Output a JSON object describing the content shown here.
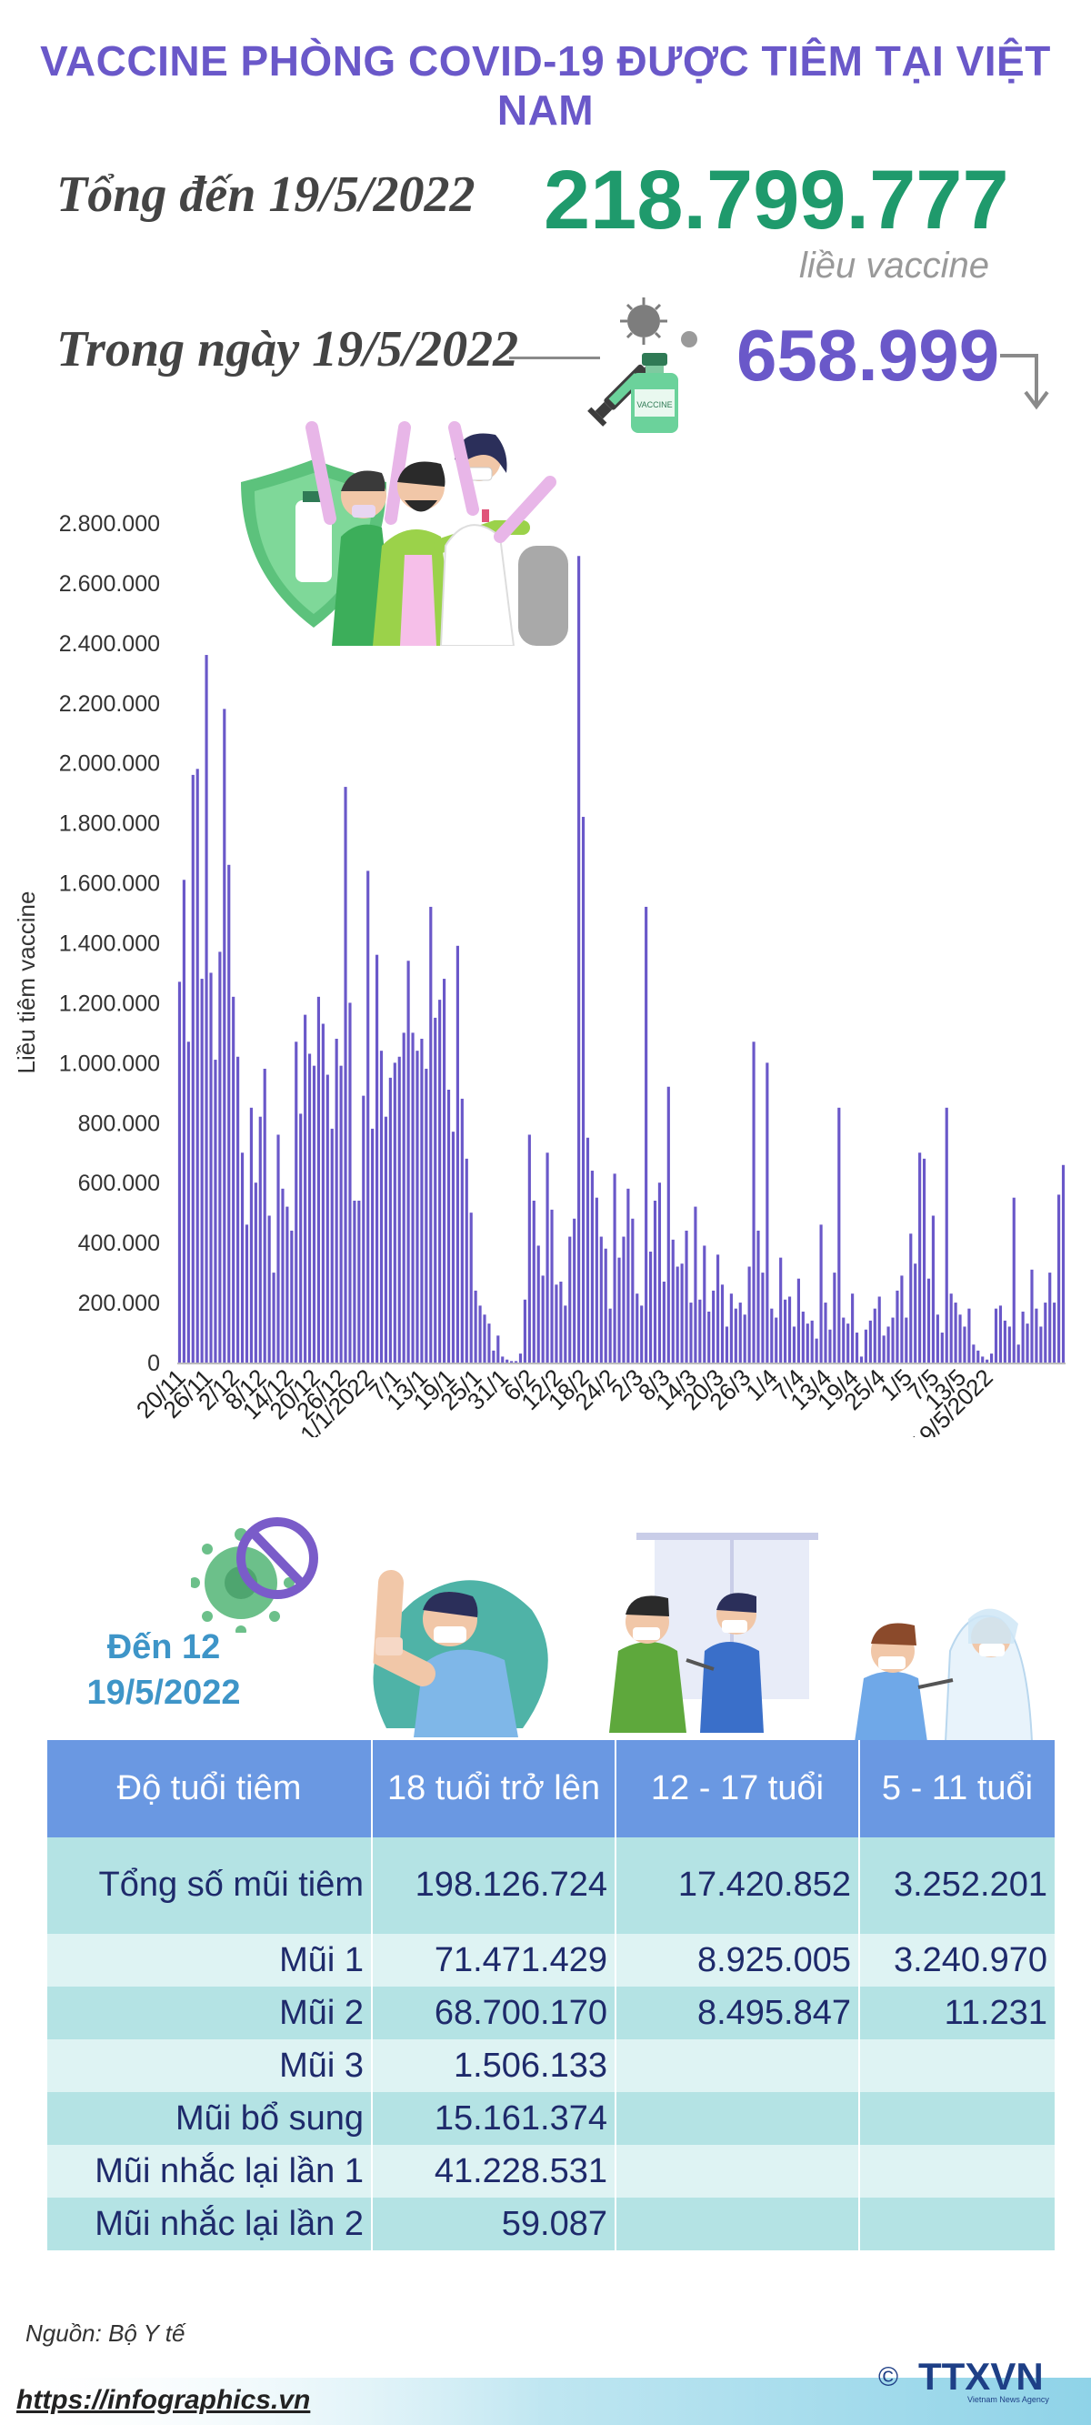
{
  "title": "VACCINE PHÒNG COVID-19 ĐƯỢC TIÊM TẠI VIỆT NAM",
  "summary": {
    "total_label": "Tổng đến 19/5/2022",
    "total_value": "218.799.777",
    "total_unit": "liều vaccine",
    "day_label": "Trong ngày 19/5/2022",
    "day_value": "658.999",
    "trend": "down"
  },
  "colors": {
    "title": "#6a58c9",
    "total": "#1f9a6c",
    "bar": "#6a58c9",
    "table_header": "#6a98e2",
    "subtitle": "#3e95c8"
  },
  "illustrations": {
    "syringe": "syringe-icon",
    "vial": "vaccine-vial-icon",
    "virus": "virus-icon",
    "people": "celebrating-people-illustration",
    "shield": "vaccine-shield-icon",
    "vial_label": "VACCINE"
  },
  "chart_data": {
    "type": "bar",
    "title": "",
    "ylabel": "Liều tiêm vaccine",
    "ylim": [
      0,
      2800000
    ],
    "yticks": [
      0,
      200000,
      400000,
      600000,
      800000,
      1000000,
      1200000,
      1400000,
      1600000,
      1800000,
      2000000,
      2200000,
      2400000,
      2600000,
      2800000
    ],
    "ytick_labels": [
      "0",
      "200.000",
      "400.000",
      "600.000",
      "800.000",
      "1.000.000",
      "1.200.000",
      "1.400.000",
      "1.600.000",
      "1.800.000",
      "2.000.000",
      "2.200.000",
      "2.400.000",
      "2.600.000",
      "2.800.000"
    ],
    "xtick_labels": [
      "20/11",
      "26/11",
      "2/12",
      "8/12",
      "14/12",
      "20/12",
      "26/12",
      "1/1/2022",
      "7/1",
      "13/1",
      "19/1",
      "25/1",
      "31/1",
      "6/2",
      "12/2",
      "18/2",
      "24/2",
      "2/3",
      "8/3",
      "14/3",
      "20/3",
      "26/3",
      "1/4",
      "7/4",
      "13/4",
      "19/4",
      "25/4",
      "1/5",
      "7/5",
      "13/5",
      "19/5/2022"
    ],
    "xtick_step": 6,
    "grid": false,
    "values": [
      1270000,
      1610000,
      1070000,
      1960000,
      1980000,
      1280000,
      2360000,
      1300000,
      1010000,
      1370000,
      2180000,
      1660000,
      1220000,
      1020000,
      700000,
      460000,
      850000,
      600000,
      820000,
      980000,
      490000,
      300000,
      760000,
      580000,
      520000,
      440000,
      1070000,
      830000,
      1160000,
      1030000,
      990000,
      1220000,
      1130000,
      960000,
      780000,
      1080000,
      990000,
      1920000,
      1200000,
      540000,
      540000,
      890000,
      1640000,
      780000,
      1360000,
      1040000,
      820000,
      950000,
      1000000,
      1020000,
      1100000,
      1340000,
      1100000,
      1040000,
      1080000,
      980000,
      1520000,
      1150000,
      1210000,
      1280000,
      910000,
      770000,
      1390000,
      880000,
      680000,
      500000,
      240000,
      190000,
      160000,
      130000,
      40000,
      90000,
      20000,
      10000,
      5000,
      5000,
      30000,
      210000,
      760000,
      540000,
      390000,
      290000,
      700000,
      510000,
      260000,
      270000,
      190000,
      420000,
      480000,
      2690000,
      1820000,
      750000,
      640000,
      550000,
      420000,
      380000,
      180000,
      630000,
      350000,
      420000,
      580000,
      480000,
      230000,
      190000,
      1520000,
      370000,
      540000,
      600000,
      270000,
      920000,
      410000,
      320000,
      330000,
      440000,
      200000,
      520000,
      210000,
      390000,
      170000,
      240000,
      360000,
      260000,
      120000,
      230000,
      180000,
      200000,
      160000,
      320000,
      1070000,
      440000,
      300000,
      1000000,
      180000,
      150000,
      350000,
      210000,
      220000,
      120000,
      280000,
      170000,
      130000,
      140000,
      80000,
      460000,
      200000,
      110000,
      300000,
      850000,
      150000,
      130000,
      230000,
      100000,
      20000,
      110000,
      140000,
      180000,
      220000,
      90000,
      120000,
      150000,
      240000,
      290000,
      150000,
      430000,
      330000,
      700000,
      680000,
      280000,
      490000,
      160000,
      100000,
      850000,
      230000,
      200000,
      160000,
      120000,
      180000,
      60000,
      40000,
      20000,
      10000,
      30000,
      180000,
      190000,
      140000,
      120000,
      550000,
      60000,
      170000,
      130000,
      310000,
      180000,
      120000,
      200000,
      300000,
      200000,
      560000,
      659000
    ]
  },
  "table": {
    "subtitle_line1": "Đến 12",
    "subtitle_line2": "19/5/2022",
    "headers": [
      "Độ tuổi tiêm",
      "18 tuổi trở lên",
      "12 - 17 tuổi",
      "5 - 11 tuổi"
    ],
    "rows": [
      {
        "label": "Tổng số mũi tiêm",
        "c1": "198.126.724",
        "c2": "17.420.852",
        "c3": "3.252.201"
      },
      {
        "label": "Mũi 1",
        "c1": "71.471.429",
        "c2": "8.925.005",
        "c3": "3.240.970"
      },
      {
        "label": "Mũi 2",
        "c1": "68.700.170",
        "c2": "8.495.847",
        "c3": "11.231"
      },
      {
        "label": "Mũi 3",
        "c1": "1.506.133",
        "c2": "",
        "c3": ""
      },
      {
        "label": "Mũi bổ sung",
        "c1": "15.161.374",
        "c2": "",
        "c3": ""
      },
      {
        "label": "Mũi nhắc lại lần 1",
        "c1": "41.228.531",
        "c2": "",
        "c3": ""
      },
      {
        "label": "Mũi nhắc lại lần 2",
        "c1": "59.087",
        "c2": "",
        "c3": ""
      }
    ]
  },
  "footer": {
    "source": "Nguồn: Bộ Y tế",
    "url": "https://infographics.vn",
    "copyright": "©",
    "logo": "TTXVN",
    "logo_sub": "Vietnam News Agency"
  }
}
